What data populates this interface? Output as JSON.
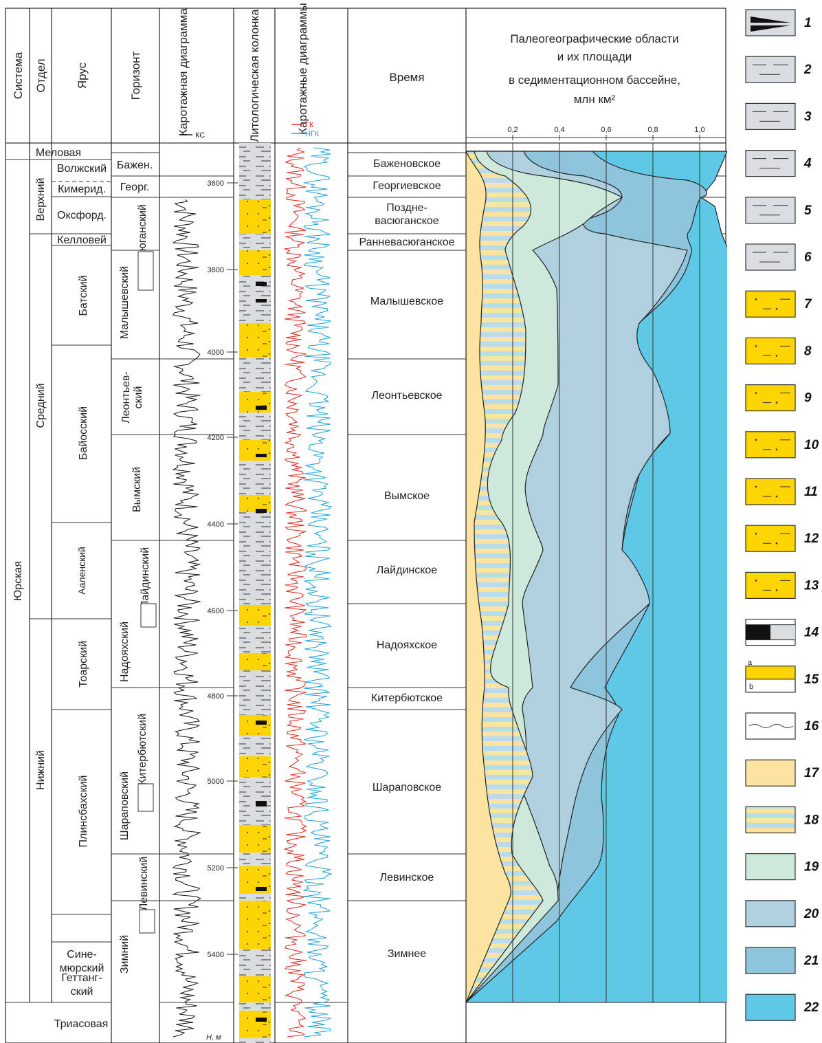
{
  "headers": {
    "system": "Система",
    "section": "Отдел",
    "stage": "Ярус",
    "horizon": "Горизонт",
    "log_diagram": "Каротажная диаграмма",
    "litho": "Литологическая колонка",
    "log_diagrams": "Каротажные диаграммы",
    "time": "Время",
    "paleo": [
      "Палеогеографические области",
      "и их площади",
      "в седиментационном бассейне,",
      "млн км²"
    ],
    "ks": "КС",
    "gk": "ГК",
    "ngk": "НГК"
  },
  "colors": {
    "gk": "#e2261c",
    "ngk": "#1aa0d8",
    "yellow": "#ffd400",
    "c17": "#fbe49f",
    "c19": "#cde9da",
    "c20": "#afd0de",
    "c21": "#8ec4dc",
    "c22": "#5ec8e6"
  },
  "systems": {
    "cretaceous": "Меловая",
    "jurassic": "Юрская",
    "triassic": "Триасовая"
  },
  "sections": {
    "upper": "Верхний",
    "middle": "Средний",
    "lower": "Нижний"
  },
  "stages": {
    "volzh": "Волжский",
    "kimer": "Кимерид.",
    "oxford": "Оксфорд.",
    "kellov": "Келловей",
    "bat": "Батский",
    "bayos": "Байосский",
    "aalen": "Ааленский",
    "toar": "Тоарский",
    "plins": "Плинсбахский",
    "sinem": [
      "Сине-",
      "мюрский"
    ],
    "gett": [
      "Геттанг-",
      "ский"
    ]
  },
  "horizons": {
    "bazhen": "Бажен.",
    "georg": "Георг.",
    "vasyugan": "Васюганский",
    "malysh": "Малышевский",
    "leont": [
      "Леонтьев-",
      "ский"
    ],
    "vym": "Вымский",
    "laid": "Лайдинский",
    "nadoyakh": "Надояхский",
    "kiterb": "Китербютский",
    "sharap": "Шараповский",
    "levin": "Левинский",
    "zimn": "Зимний"
  },
  "depth_ticks": [
    "3600",
    "3800",
    "4000",
    "4200",
    "4400",
    "4600",
    "4800",
    "5000",
    "5200",
    "5400"
  ],
  "depth_unit": "H, м",
  "times": [
    {
      "label": "Баженовское"
    },
    {
      "label": "Георгиевское"
    },
    {
      "label": "Поздне-",
      "label2": "васюганское"
    },
    {
      "label": "Ранневасюганское"
    },
    {
      "label": "Малышевское"
    },
    {
      "label": "Леонтьевское"
    },
    {
      "label": "Вымское"
    },
    {
      "label": "Лайдинское"
    },
    {
      "label": "Надояхское"
    },
    {
      "label": "Китербютское"
    },
    {
      "label": "Шараповское"
    },
    {
      "label": "Левинское"
    },
    {
      "label": "Зимнее"
    }
  ],
  "area_ticks": [
    "0,2",
    "0,4",
    "0,6",
    "0,8",
    "1,0"
  ],
  "legend": {
    "numbers": [
      "1",
      "2",
      "3",
      "4",
      "5",
      "6",
      "7",
      "8",
      "9",
      "10",
      "11",
      "12",
      "13",
      "14",
      "15",
      "16",
      "17",
      "18",
      "19",
      "20",
      "21",
      "22"
    ],
    "sub_a": "a",
    "sub_b": "b"
  }
}
